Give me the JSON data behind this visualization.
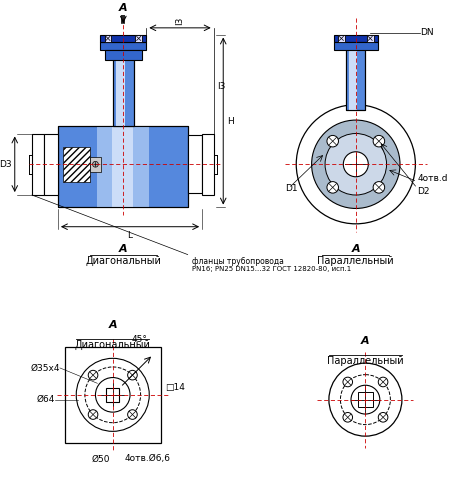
{
  "bg_color": "#ffffff",
  "lc": "#000000",
  "blue_dark": "#1133aa",
  "blue_mid": "#3366cc",
  "blue_body": "#5588dd",
  "blue_light": "#99bbee",
  "blue_lightest": "#ccddf8",
  "view1_label": "A",
  "view1_sublabel": "Диагональный",
  "view2_label": "A",
  "view2_sublabel": "Параллельный",
  "flange_note": "фланцы трубопровода",
  "flange_note2": "PN16; PN25 DN15...32 ГОСТ 12820-80, исп.1",
  "dim_l": "L",
  "dim_h": "H",
  "dim_l3": "l3",
  "dim_d3": "D3",
  "dim_dn": "DN",
  "dim_d1": "D1",
  "dim_d2": "D2",
  "dim_4otv_d": "4отв.d",
  "dim_35x4": "Ø35x4",
  "dim_64": "Ø64",
  "dim_50": "Ø50",
  "dim_14": "□14",
  "dim_45": "45°",
  "dim_4otv66": "4отв.Ø6,6",
  "dim_a_arrow": "A"
}
